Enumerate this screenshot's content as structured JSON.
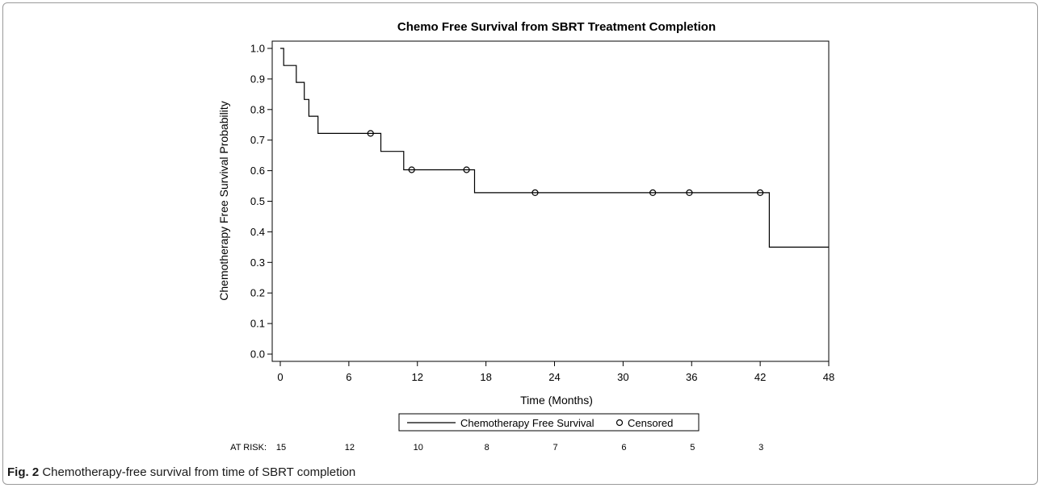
{
  "chart_data": {
    "type": "line",
    "title": "Chemo Free Survival from SBRT Treatment Completion",
    "xlabel": "Time (Months)",
    "ylabel": "Chemotherapy Free Survival Probability",
    "xlim": [
      0,
      48
    ],
    "ylim": [
      0.0,
      1.0
    ],
    "xticks": [
      "0",
      "6",
      "12",
      "18",
      "24",
      "30",
      "36",
      "42",
      "48"
    ],
    "yticks": [
      "0.0",
      "0.1",
      "0.2",
      "0.3",
      "0.4",
      "0.5",
      "0.6",
      "0.7",
      "0.8",
      "0.9",
      "1.0"
    ],
    "grid": false,
    "legend_position": "bottom",
    "series": [
      {
        "name": "Chemotherapy Free Survival",
        "style": "step",
        "x": [
          0,
          0.3,
          0.3,
          1.4,
          1.4,
          2.1,
          2.1,
          2.5,
          2.5,
          3.3,
          3.3,
          8.8,
          8.8,
          10.8,
          10.8,
          17.0,
          17.0,
          42.8,
          42.8,
          48
        ],
        "y": [
          1.0,
          1.0,
          0.944,
          0.944,
          0.889,
          0.889,
          0.833,
          0.833,
          0.778,
          0.778,
          0.722,
          0.722,
          0.663,
          0.663,
          0.603,
          0.603,
          0.528,
          0.528,
          0.35,
          0.35
        ]
      },
      {
        "name": "Censored",
        "style": "marker",
        "x": [
          7.9,
          11.5,
          16.3,
          22.3,
          32.6,
          35.8,
          42.0
        ],
        "y": [
          0.722,
          0.603,
          0.603,
          0.528,
          0.528,
          0.528,
          0.528
        ]
      }
    ],
    "at_risk": {
      "label": "AT RISK:",
      "x": [
        0,
        6,
        12,
        18,
        24,
        30,
        36,
        42
      ],
      "counts": [
        "15",
        "12",
        "10",
        "8",
        "7",
        "6",
        "5",
        "3"
      ]
    }
  },
  "caption": {
    "prefix": "Fig. 2",
    "text": " Chemotherapy-free survival from time of SBRT completion"
  },
  "colors": {
    "line": "#000000",
    "axis": "#000000",
    "frame": "#9a9a9a"
  }
}
